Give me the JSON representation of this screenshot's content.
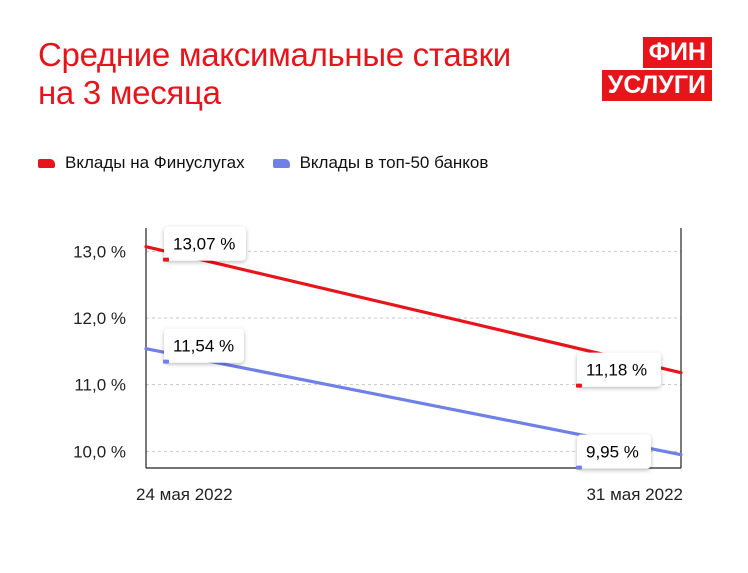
{
  "title": {
    "line1": "Средние максимальные ставки",
    "line2": "на 3 месяца"
  },
  "logo": {
    "line1": "ФИН",
    "line2": "УСЛУГИ",
    "color": "#e8141c"
  },
  "chart_data": {
    "type": "line",
    "title": "Средние максимальные ставки на 3 месяца",
    "x": [
      "24 мая 2022",
      "31 мая 2022"
    ],
    "ylim": [
      9.75,
      13.35
    ],
    "yticks": [
      13.0,
      12.0,
      11.0,
      10.0
    ],
    "ytick_labels": [
      "13,0 %",
      "12,0 %",
      "11,0 %",
      "10,0 %"
    ],
    "grid": true,
    "legend_position": "top-left",
    "series": [
      {
        "name": "Вклады на Финуслугах",
        "color": "#e8141c",
        "values": [
          13.07,
          11.18
        ],
        "labels": [
          "13,07 %",
          "11,18 %"
        ]
      },
      {
        "name": "Вклады в топ-50 банков",
        "color": "#6f80e6",
        "values": [
          11.54,
          9.95
        ],
        "labels": [
          "11,54 %",
          "9,95 %"
        ]
      }
    ]
  }
}
